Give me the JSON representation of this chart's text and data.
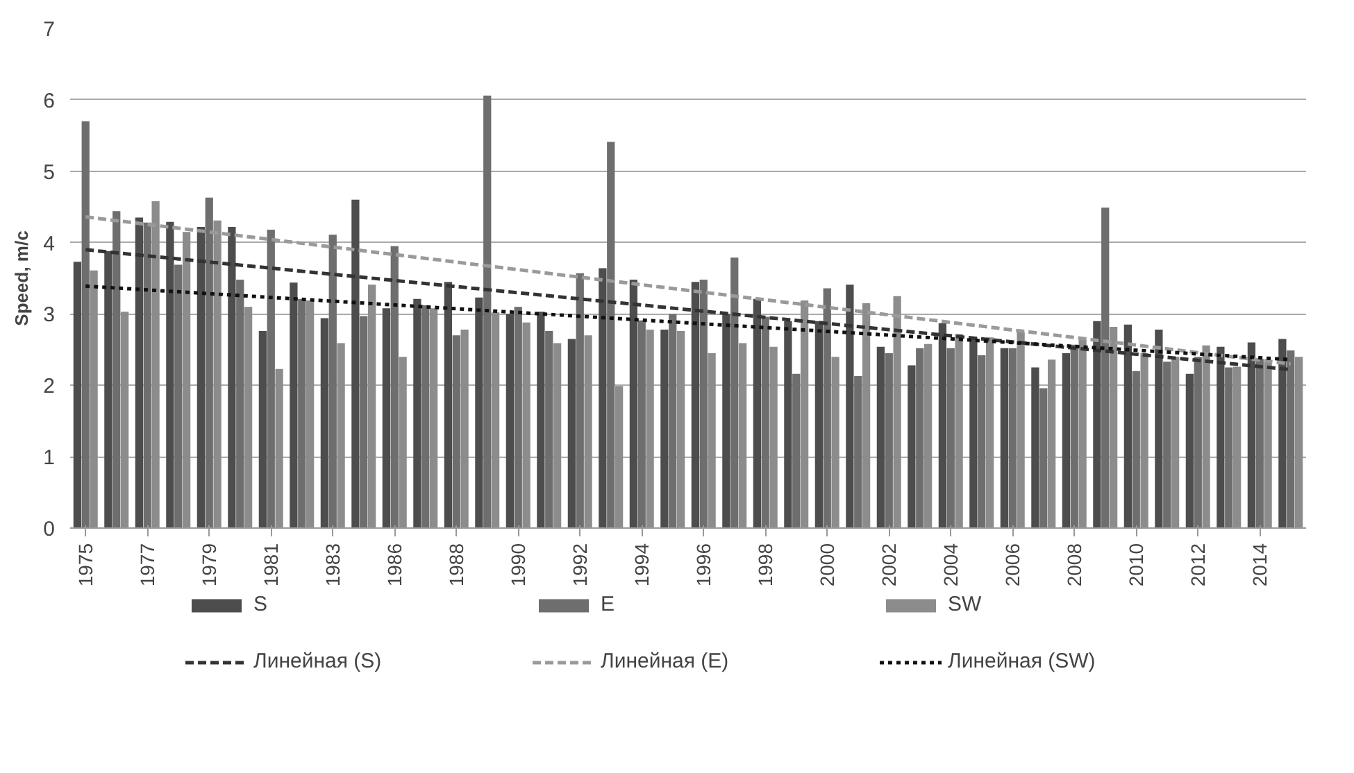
{
  "chart_data": {
    "type": "bar",
    "ylabel": "Speed, m/c",
    "ylim": [
      0,
      7
    ],
    "yticks": [
      0,
      1,
      2,
      3,
      4,
      5,
      6,
      7
    ],
    "grid": "y",
    "legend": "bottom",
    "categories": [
      "1975",
      null,
      "1977",
      null,
      "1979",
      null,
      "1981",
      null,
      "1983",
      null,
      "1986",
      null,
      "1988",
      null,
      "1990",
      null,
      "1992",
      null,
      "1994",
      null,
      "1996",
      null,
      "1998",
      null,
      "2000",
      null,
      "2002",
      null,
      "2004",
      null,
      "2006",
      null,
      "2008",
      null,
      "2010",
      null,
      "2012",
      null,
      "2014",
      null
    ],
    "series": [
      {
        "name": "S",
        "color": "#4d4d4d",
        "values": [
          3.73,
          3.88,
          4.35,
          4.29,
          4.22,
          4.22,
          2.76,
          3.44,
          2.94,
          4.6,
          3.08,
          3.21,
          3.45,
          3.23,
          3.0,
          3.03,
          2.65,
          3.64,
          3.48,
          2.78,
          3.45,
          3.0,
          3.21,
          2.9,
          2.9,
          3.41,
          2.54,
          2.28,
          2.87,
          2.67,
          2.52,
          2.25,
          2.45,
          2.9,
          2.85,
          2.78,
          2.16,
          2.54,
          2.6,
          2.65
        ]
      },
      {
        "name": "E",
        "color": "#6e6e6e",
        "values": [
          5.7,
          4.44,
          4.28,
          3.69,
          4.63,
          3.48,
          4.18,
          3.21,
          4.11,
          2.97,
          3.95,
          3.12,
          2.7,
          6.06,
          3.1,
          2.76,
          3.57,
          5.41,
          2.91,
          3.0,
          3.48,
          3.79,
          2.96,
          2.16,
          3.36,
          2.13,
          2.45,
          2.52,
          2.52,
          2.42,
          2.52,
          1.96,
          2.57,
          4.49,
          2.2,
          2.33,
          2.4,
          2.25,
          2.37,
          2.49
        ]
      },
      {
        "name": "SW",
        "color": "#8c8c8c",
        "values": [
          3.61,
          3.03,
          4.58,
          4.15,
          4.31,
          3.1,
          2.23,
          3.19,
          2.59,
          3.41,
          2.4,
          3.08,
          2.78,
          3.02,
          2.88,
          2.59,
          2.7,
          1.99,
          2.78,
          2.76,
          2.45,
          2.59,
          2.54,
          3.19,
          2.4,
          3.15,
          3.25,
          2.58,
          2.72,
          2.67,
          2.75,
          2.36,
          2.64,
          2.82,
          2.45,
          2.4,
          2.56,
          2.26,
          2.33,
          2.4
        ]
      },
      {
        "name": "Линейная (S)",
        "type": "line",
        "line_style": "dashed",
        "color": "#333333",
        "values": [
          3.9,
          null,
          null,
          null,
          null,
          null,
          null,
          null,
          null,
          null,
          null,
          null,
          null,
          null,
          null,
          null,
          null,
          null,
          null,
          null,
          null,
          null,
          null,
          null,
          null,
          null,
          null,
          null,
          null,
          null,
          null,
          null,
          null,
          null,
          null,
          null,
          null,
          null,
          null,
          2.22
        ]
      },
      {
        "name": "Линейная (E)",
        "type": "line",
        "line_style": "dashed",
        "color": "#9a9a9a",
        "values": [
          4.36,
          null,
          null,
          null,
          null,
          null,
          null,
          null,
          null,
          null,
          null,
          null,
          null,
          null,
          null,
          null,
          null,
          null,
          null,
          null,
          null,
          null,
          null,
          null,
          null,
          null,
          null,
          null,
          null,
          null,
          null,
          null,
          null,
          null,
          null,
          null,
          null,
          null,
          null,
          2.3
        ]
      },
      {
        "name": "Линейная (SW)",
        "type": "line",
        "line_style": "dotted",
        "color": "#111111",
        "values": [
          3.39,
          null,
          null,
          null,
          null,
          null,
          null,
          null,
          null,
          null,
          null,
          null,
          null,
          null,
          null,
          null,
          null,
          null,
          null,
          null,
          null,
          null,
          null,
          null,
          null,
          null,
          null,
          null,
          null,
          null,
          null,
          null,
          null,
          null,
          null,
          null,
          null,
          null,
          null,
          2.36
        ]
      }
    ]
  }
}
